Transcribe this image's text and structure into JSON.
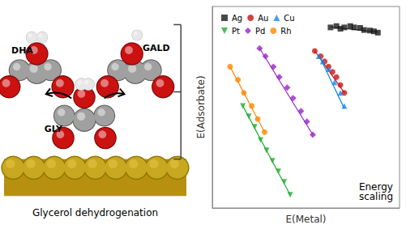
{
  "chart_data": [
    {
      "type": "illustration",
      "title": "Glycerol dehydrogenation",
      "annotations": [
        "GLY",
        "DHA",
        "GALD"
      ]
    },
    {
      "type": "scatter",
      "xlabel": "E(Metal)",
      "ylabel": "E(Adsorbate)",
      "annotations": [
        "Energy\nscaling"
      ],
      "xlim": [
        0.0,
        0.95
      ],
      "ylim": [
        0.05,
        0.82
      ],
      "tick_labels": false,
      "grid": false,
      "legend": "upper left",
      "series": [
        {
          "name": "Ag",
          "color": "#1a1a1a",
          "marker": "square",
          "x": [
            0.6,
            0.63,
            0.65,
            0.67,
            0.7,
            0.72,
            0.75,
            0.77,
            0.8,
            0.82,
            0.84
          ],
          "values": [
            0.74,
            0.745,
            0.735,
            0.74,
            0.745,
            0.74,
            0.738,
            0.73,
            0.728,
            0.725,
            0.72
          ],
          "fit_x": [
            0.6,
            0.84
          ],
          "fit_y": [
            0.742,
            0.722
          ]
        },
        {
          "name": "Au",
          "color": "#CC1111",
          "marker": "circle",
          "x": [
            0.52,
            0.55,
            0.57,
            0.59,
            0.61,
            0.63,
            0.65,
            0.67
          ],
          "values": [
            0.65,
            0.63,
            0.61,
            0.59,
            0.57,
            0.55,
            0.52,
            0.49
          ],
          "fit_x": [
            0.52,
            0.67
          ],
          "fit_y": [
            0.65,
            0.49
          ]
        },
        {
          "name": "Cu",
          "color": "#1188EE",
          "marker": "triangle",
          "x": [
            0.54,
            0.56,
            0.59,
            0.62,
            0.65,
            0.67
          ],
          "values": [
            0.63,
            0.61,
            0.58,
            0.53,
            0.49,
            0.44
          ],
          "fit_x": [
            0.54,
            0.67
          ],
          "fit_y": [
            0.635,
            0.43
          ]
        },
        {
          "name": "Pt",
          "color": "#22AA33",
          "marker": "triangle_down",
          "x": [
            0.155,
            0.185,
            0.215,
            0.245,
            0.275,
            0.305,
            0.335,
            0.365,
            0.395
          ],
          "values": [
            0.44,
            0.4,
            0.36,
            0.31,
            0.27,
            0.23,
            0.19,
            0.15,
            0.1
          ],
          "fit_x": [
            0.155,
            0.395
          ],
          "fit_y": [
            0.44,
            0.1
          ]
        },
        {
          "name": "Pd",
          "color": "#9922CC",
          "marker": "diamond",
          "x": [
            0.24,
            0.27,
            0.31,
            0.34,
            0.38,
            0.41,
            0.45,
            0.48,
            0.51
          ],
          "values": [
            0.66,
            0.63,
            0.59,
            0.55,
            0.51,
            0.47,
            0.42,
            0.38,
            0.33
          ],
          "fit_x": [
            0.24,
            0.51
          ],
          "fit_y": [
            0.66,
            0.33
          ]
        },
        {
          "name": "Rh",
          "color": "#FF8800",
          "marker": "circle",
          "x": [
            0.09,
            0.13,
            0.16,
            0.2,
            0.23,
            0.265
          ],
          "values": [
            0.59,
            0.54,
            0.49,
            0.44,
            0.39,
            0.34
          ],
          "fit_x": [
            0.09,
            0.265
          ],
          "fit_y": [
            0.59,
            0.34
          ]
        }
      ]
    }
  ]
}
